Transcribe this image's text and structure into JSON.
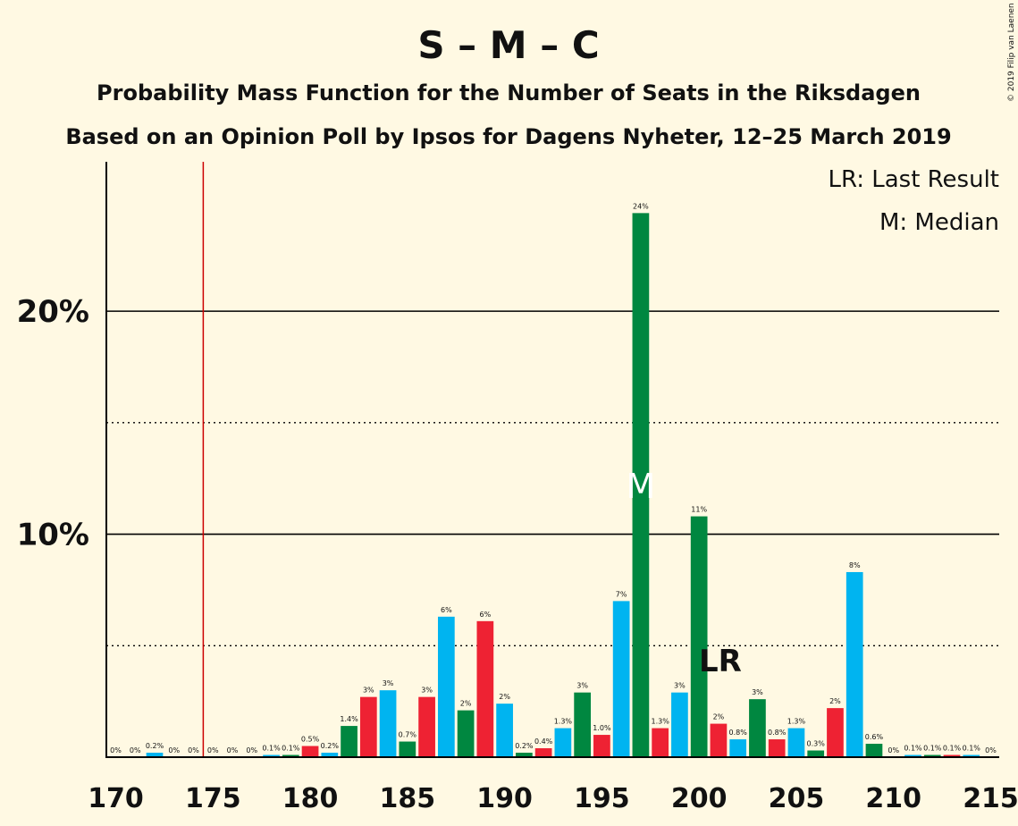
{
  "chart_data": {
    "type": "bar",
    "title": "S – M – C",
    "subtitle": "Probability Mass Function for the Number of Seats in the Riksdagen",
    "subtitle2": "Based on an Opinion Poll by Ipsos for Dagens Nyheter, 12–25 March 2019",
    "credit": "© 2019 Filip van Laenen",
    "legend": [
      "LR: Last Result",
      "M: Median"
    ],
    "legend_position": "top-right",
    "xlim": [
      170,
      215
    ],
    "ylim": [
      0,
      26.7
    ],
    "x_ticks": [
      170,
      175,
      180,
      185,
      190,
      195,
      200,
      205,
      210,
      215
    ],
    "y_ticks": [
      {
        "value": 10,
        "label": "10%"
      },
      {
        "value": 20,
        "label": "20%"
      }
    ],
    "minor_gridlines": [
      5,
      15
    ],
    "majority_line": 175,
    "last_result": {
      "x": 201,
      "label": "LR"
    },
    "median": {
      "x": 197,
      "label": "M"
    },
    "party_colors": {
      "S": "#EE2233",
      "M": "#00B4F0",
      "C": "#008740"
    },
    "bars": [
      {
        "x": 170,
        "value": 0,
        "label": "0%",
        "color": "#00B4F0"
      },
      {
        "x": 171,
        "value": 0,
        "label": "0%",
        "color": "#008740"
      },
      {
        "x": 172,
        "value": 0.2,
        "label": "0.2%",
        "color": "#00B4F0"
      },
      {
        "x": 173,
        "value": 0,
        "label": "0%",
        "color": "#008740"
      },
      {
        "x": 174,
        "value": 0,
        "label": "0%",
        "color": "#EE2233"
      },
      {
        "x": 175,
        "value": 0,
        "label": "0%",
        "color": "#00B4F0"
      },
      {
        "x": 176,
        "value": 0,
        "label": "0%",
        "color": "#008740"
      },
      {
        "x": 177,
        "value": 0,
        "label": "0%",
        "color": "#EE2233"
      },
      {
        "x": 178,
        "value": 0.1,
        "label": "0.1%",
        "color": "#00B4F0"
      },
      {
        "x": 179,
        "value": 0.1,
        "label": "0.1%",
        "color": "#008740"
      },
      {
        "x": 180,
        "value": 0.5,
        "label": "0.5%",
        "color": "#EE2233"
      },
      {
        "x": 181,
        "value": 0.2,
        "label": "0.2%",
        "color": "#00B4F0"
      },
      {
        "x": 182,
        "value": 1.4,
        "label": "1.4%",
        "color": "#008740"
      },
      {
        "x": 183,
        "value": 2.7,
        "label": "3%",
        "color": "#EE2233"
      },
      {
        "x": 184,
        "value": 3.0,
        "label": "3%",
        "color": "#00B4F0"
      },
      {
        "x": 185,
        "value": 0.7,
        "label": "0.7%",
        "color": "#008740"
      },
      {
        "x": 186,
        "value": 2.7,
        "label": "3%",
        "color": "#EE2233"
      },
      {
        "x": 187,
        "value": 6.3,
        "label": "6%",
        "color": "#00B4F0"
      },
      {
        "x": 188,
        "value": 2.1,
        "label": "2%",
        "color": "#008740"
      },
      {
        "x": 189,
        "value": 6.1,
        "label": "6%",
        "color": "#EE2233"
      },
      {
        "x": 190,
        "value": 2.4,
        "label": "2%",
        "color": "#00B4F0"
      },
      {
        "x": 191,
        "value": 0.2,
        "label": "0.2%",
        "color": "#008740"
      },
      {
        "x": 192,
        "value": 0.4,
        "label": "0.4%",
        "color": "#EE2233"
      },
      {
        "x": 193,
        "value": 1.3,
        "label": "1.3%",
        "color": "#00B4F0"
      },
      {
        "x": 194,
        "value": 2.9,
        "label": "3%",
        "color": "#008740"
      },
      {
        "x": 195,
        "value": 1.0,
        "label": "1.0%",
        "color": "#EE2233"
      },
      {
        "x": 196,
        "value": 7.0,
        "label": "7%",
        "color": "#00B4F0"
      },
      {
        "x": 197,
        "value": 24.4,
        "label": "24%",
        "color": "#008740"
      },
      {
        "x": 198,
        "value": 1.3,
        "label": "1.3%",
        "color": "#EE2233"
      },
      {
        "x": 199,
        "value": 2.9,
        "label": "3%",
        "color": "#00B4F0"
      },
      {
        "x": 200,
        "value": 10.8,
        "label": "11%",
        "color": "#008740"
      },
      {
        "x": 201,
        "value": 1.5,
        "label": "2%",
        "color": "#EE2233"
      },
      {
        "x": 202,
        "value": 0.8,
        "label": "0.8%",
        "color": "#00B4F0"
      },
      {
        "x": 203,
        "value": 2.6,
        "label": "3%",
        "color": "#008740"
      },
      {
        "x": 204,
        "value": 0.8,
        "label": "0.8%",
        "color": "#EE2233"
      },
      {
        "x": 205,
        "value": 1.3,
        "label": "1.3%",
        "color": "#00B4F0"
      },
      {
        "x": 206,
        "value": 0.3,
        "label": "0.3%",
        "color": "#008740"
      },
      {
        "x": 207,
        "value": 2.2,
        "label": "2%",
        "color": "#EE2233"
      },
      {
        "x": 208,
        "value": 8.3,
        "label": "8%",
        "color": "#00B4F0"
      },
      {
        "x": 209,
        "value": 0.6,
        "label": "0.6%",
        "color": "#008740"
      },
      {
        "x": 210,
        "value": 0,
        "label": "0%",
        "color": "#EE2233"
      },
      {
        "x": 211,
        "value": 0.1,
        "label": "0.1%",
        "color": "#00B4F0"
      },
      {
        "x": 212,
        "value": 0.1,
        "label": "0.1%",
        "color": "#008740"
      },
      {
        "x": 213,
        "value": 0.1,
        "label": "0.1%",
        "color": "#EE2233"
      },
      {
        "x": 214,
        "value": 0.1,
        "label": "0.1%",
        "color": "#00B4F0"
      },
      {
        "x": 215,
        "value": 0,
        "label": "0%",
        "color": "#008740"
      }
    ]
  }
}
